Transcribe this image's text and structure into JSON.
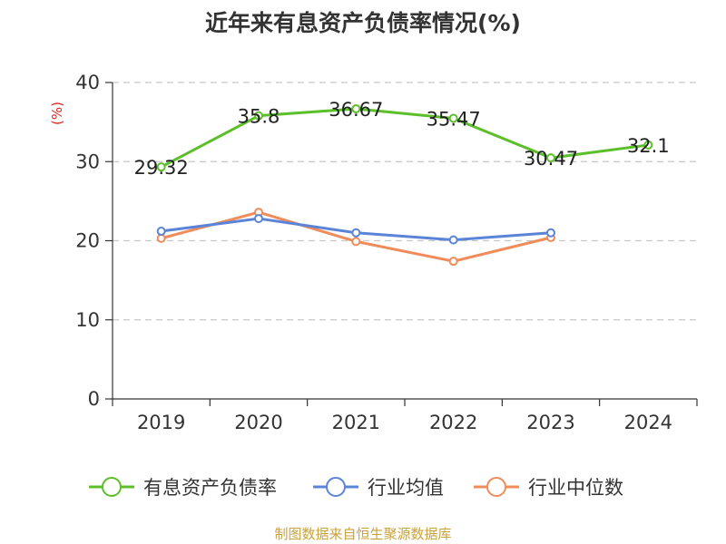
{
  "title": "近年来有息资产负债率情况(%)",
  "source": "制图数据来自恒生聚源数据库",
  "chart_data": {
    "type": "line",
    "title": "近年来有息资产负债率情况(%)",
    "ylabel": "(%)",
    "xlabel": "",
    "categories": [
      "2019",
      "2020",
      "2021",
      "2022",
      "2023",
      "2024"
    ],
    "ylim": [
      0,
      40
    ],
    "yticks": [
      0,
      10,
      20,
      30,
      40
    ],
    "grid": true,
    "legend_position": "bottom",
    "series": [
      {
        "name": "有息资产负债率",
        "color": "#5cbf2a",
        "values": [
          29.32,
          35.8,
          36.67,
          35.47,
          30.47,
          32.1
        ],
        "labels": [
          "29.32",
          "35.8",
          "36.67",
          "35.47",
          "30.47",
          "32.1"
        ],
        "show_labels": true
      },
      {
        "name": "行业均值",
        "color": "#5b84d8",
        "values": [
          21.2,
          22.8,
          21.0,
          20.1,
          21.0,
          null
        ],
        "show_labels": false
      },
      {
        "name": "行业中位数",
        "color": "#f08c5a",
        "values": [
          20.3,
          23.6,
          19.9,
          17.4,
          20.4,
          null
        ],
        "show_labels": false
      }
    ]
  }
}
